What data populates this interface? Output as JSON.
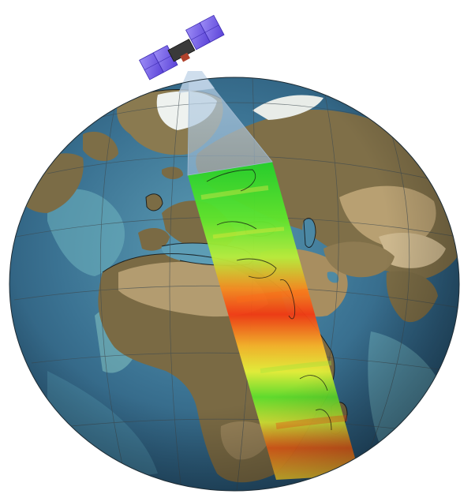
{
  "scene": {
    "subject": "satellite-swath-over-globe",
    "colors": {
      "background": "#ffffff",
      "ocean_deep": "#2c5777",
      "ocean_mid": "#4f8aa3",
      "ocean_shallow": "#a9d8cf",
      "land_lowland": "#7a6b45",
      "land_desert": "#b49a6c",
      "land_highland": "#cdb88e",
      "ice": "#f3f5f3",
      "coastline": "#0c0c0c",
      "graticule": "#3e4a50",
      "swath_low": "#22d12b",
      "swath_mid": "#e6f23a",
      "swath_high": "#f23a13",
      "beam": "#aac6de",
      "solar_panel": "#7b63e8",
      "satellite_body": "#3a3a3a"
    }
  }
}
